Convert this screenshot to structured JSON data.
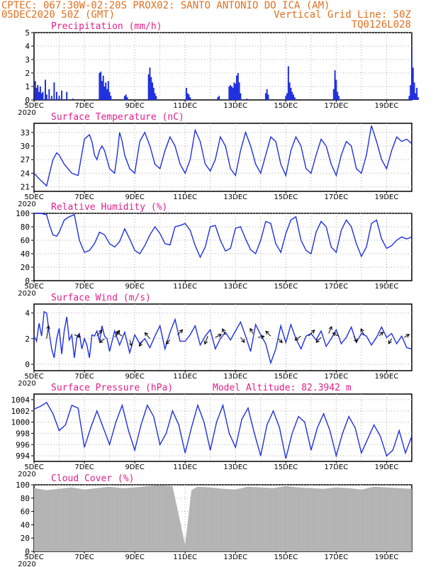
{
  "header": {
    "line1_left": "CPTEC:  067:30W-02:20S   PROX02: SANTO ANTONIO DO ICA (AM)",
    "line2_left": "05DEC2020 50Z (GMT)",
    "line2_right": "Vertical Grid Line: 50Z",
    "line3_right": "TQ0126L028"
  },
  "colors": {
    "series": "#2030e0",
    "title": "#e0208a",
    "header": "#e07020",
    "cloud": "#b0b0b0",
    "grid": "#aaaaaa"
  },
  "x_tick_labels": [
    "5DEC",
    "7DEC",
    "9DEC",
    "11DEC",
    "13DEC",
    "15DEC",
    "17DEC",
    "19DEC"
  ],
  "x_year_label": "2020",
  "chart_data": [
    {
      "type": "bar",
      "title": "Precipitation (mm/h)",
      "ylim": [
        0,
        5
      ],
      "yticks": [
        0,
        1,
        2,
        3,
        4,
        5
      ],
      "x_unit": "days since 05DEC2020 00Z",
      "bars": [
        [
          0.05,
          1.4
        ],
        [
          0.1,
          0.9
        ],
        [
          0.15,
          1.1
        ],
        [
          0.2,
          0.6
        ],
        [
          0.25,
          1.0
        ],
        [
          0.3,
          0.5
        ],
        [
          0.35,
          0.6
        ],
        [
          0.45,
          1.5
        ],
        [
          0.5,
          0.4
        ],
        [
          0.6,
          0.8
        ],
        [
          0.7,
          0.3
        ],
        [
          0.8,
          1.3
        ],
        [
          0.9,
          0.6
        ],
        [
          1.0,
          0.3
        ],
        [
          1.1,
          0.7
        ],
        [
          1.3,
          0.6
        ],
        [
          1.55,
          0.1
        ],
        [
          1.7,
          0.05
        ],
        [
          2.6,
          2.0
        ],
        [
          2.65,
          2.1
        ],
        [
          2.7,
          1.4
        ],
        [
          2.75,
          1.8
        ],
        [
          2.8,
          1.0
        ],
        [
          2.85,
          1.3
        ],
        [
          2.9,
          0.8
        ],
        [
          2.95,
          1.4
        ],
        [
          3.0,
          0.6
        ],
        [
          3.05,
          0.3
        ],
        [
          3.6,
          0.3
        ],
        [
          3.65,
          0.4
        ],
        [
          3.7,
          0.2
        ],
        [
          4.55,
          1.9
        ],
        [
          4.6,
          2.4
        ],
        [
          4.65,
          1.7
        ],
        [
          4.7,
          1.3
        ],
        [
          4.75,
          0.9
        ],
        [
          4.8,
          0.5
        ],
        [
          4.85,
          0.3
        ],
        [
          6.05,
          0.9
        ],
        [
          6.1,
          0.5
        ],
        [
          6.15,
          0.4
        ],
        [
          6.2,
          0.2
        ],
        [
          7.3,
          0.2
        ],
        [
          7.35,
          0.3
        ],
        [
          7.75,
          1.0
        ],
        [
          7.8,
          1.1
        ],
        [
          7.85,
          1.0
        ],
        [
          7.9,
          0.9
        ],
        [
          7.95,
          1.3
        ],
        [
          8.0,
          1.2
        ],
        [
          8.05,
          1.8
        ],
        [
          8.1,
          2.0
        ],
        [
          8.15,
          1.3
        ],
        [
          8.2,
          0.5
        ],
        [
          8.4,
          0.05
        ],
        [
          8.45,
          0.1
        ],
        [
          9.2,
          0.5
        ],
        [
          9.25,
          0.8
        ],
        [
          9.3,
          0.4
        ],
        [
          10.0,
          0.3
        ],
        [
          10.05,
          0.5
        ],
        [
          10.1,
          2.5
        ],
        [
          10.15,
          1.3
        ],
        [
          10.2,
          0.9
        ],
        [
          10.25,
          0.6
        ],
        [
          10.3,
          0.4
        ],
        [
          10.35,
          0.2
        ],
        [
          11.9,
          0.8
        ],
        [
          11.95,
          2.2
        ],
        [
          12.0,
          1.5
        ],
        [
          12.05,
          0.6
        ],
        [
          12.1,
          0.3
        ],
        [
          14.9,
          0.3
        ],
        [
          14.95,
          1.1
        ],
        [
          15.0,
          3.8
        ],
        [
          15.05,
          2.4
        ],
        [
          15.1,
          1.3
        ],
        [
          15.15,
          0.5
        ],
        [
          15.2,
          0.9
        ],
        [
          15.25,
          0.2
        ]
      ]
    },
    {
      "type": "line",
      "title": "Surface Temperature (nC)",
      "ylim": [
        20,
        35
      ],
      "yticks": [
        21,
        24,
        27,
        30,
        33
      ],
      "x": [
        0,
        0.25,
        0.5,
        0.62,
        0.75,
        0.9,
        1.0,
        1.2,
        1.5,
        1.75,
        2.0,
        2.2,
        2.3,
        2.4,
        2.5,
        2.6,
        2.7,
        2.8,
        2.9,
        3.0,
        3.2,
        3.3,
        3.4,
        3.5,
        3.6,
        3.8,
        4.0,
        4.2,
        4.4,
        4.6,
        4.8,
        5.0,
        5.2,
        5.4,
        5.6,
        5.8,
        6.0,
        6.2,
        6.4,
        6.6,
        6.8,
        7.0,
        7.2,
        7.4,
        7.6,
        7.8,
        8.0,
        8.2,
        8.4,
        8.6,
        8.8,
        9.0,
        9.2,
        9.4,
        9.6,
        9.8,
        10.0,
        10.2,
        10.4,
        10.6,
        10.8,
        11.0,
        11.2,
        11.4,
        11.6,
        11.8,
        12.0,
        12.2,
        12.4,
        12.6,
        12.8,
        13.0,
        13.2,
        13.4,
        13.6,
        13.8,
        14.0,
        14.2,
        14.4,
        14.6,
        14.8,
        15.0
      ],
      "values": [
        24,
        22.5,
        21.2,
        24,
        27,
        28.5,
        28,
        26,
        24,
        23.5,
        31.5,
        32.5,
        31,
        28,
        27,
        29,
        30,
        29,
        27,
        25,
        24,
        28,
        33,
        31,
        28,
        25,
        24,
        31,
        33,
        30,
        26,
        25,
        29,
        32,
        30,
        26,
        24,
        27,
        33.5,
        31,
        26,
        24.5,
        27,
        32,
        30,
        25,
        23.5,
        29,
        33,
        30,
        26,
        24,
        28,
        32,
        31,
        26,
        23.5,
        29,
        32,
        30,
        25,
        24,
        28,
        31.5,
        30,
        26,
        23.5,
        28,
        31,
        30,
        25,
        24,
        28,
        34.5,
        31,
        27,
        25,
        29,
        32,
        31,
        31.5,
        30.5
      ]
    },
    {
      "type": "line",
      "title": "Relative Humidity (%)",
      "ylim": [
        0,
        100
      ],
      "yticks": [
        0,
        20,
        40,
        60,
        80,
        100
      ],
      "x": [
        0,
        0.25,
        0.5,
        0.62,
        0.75,
        0.9,
        1.0,
        1.2,
        1.4,
        1.6,
        1.8,
        2.0,
        2.2,
        2.4,
        2.6,
        2.8,
        3.0,
        3.2,
        3.4,
        3.6,
        3.8,
        4.0,
        4.2,
        4.4,
        4.6,
        4.8,
        5.0,
        5.2,
        5.4,
        5.6,
        5.8,
        6.0,
        6.2,
        6.4,
        6.6,
        6.8,
        7.0,
        7.2,
        7.4,
        7.6,
        7.8,
        8.0,
        8.2,
        8.4,
        8.6,
        8.8,
        9.0,
        9.2,
        9.4,
        9.6,
        9.8,
        10.0,
        10.2,
        10.4,
        10.6,
        10.8,
        11.0,
        11.2,
        11.4,
        11.6,
        11.8,
        12.0,
        12.2,
        12.4,
        12.6,
        12.8,
        13.0,
        13.2,
        13.4,
        13.6,
        13.8,
        14.0,
        14.2,
        14.4,
        14.6,
        14.8,
        15.0
      ],
      "values": [
        100,
        100,
        98,
        82,
        68,
        66,
        72,
        90,
        95,
        98,
        60,
        42,
        45,
        55,
        72,
        68,
        55,
        50,
        58,
        77,
        62,
        45,
        40,
        52,
        68,
        80,
        70,
        55,
        53,
        80,
        82,
        85,
        75,
        52,
        35,
        50,
        80,
        82,
        60,
        44,
        48,
        78,
        80,
        62,
        46,
        40,
        60,
        88,
        85,
        55,
        42,
        70,
        90,
        95,
        60,
        45,
        40,
        72,
        88,
        80,
        50,
        42,
        75,
        90,
        80,
        55,
        36,
        50,
        85,
        90,
        62,
        48,
        52,
        60,
        65,
        62,
        65
      ]
    },
    {
      "type": "line",
      "title": "Surface Wind (m/s)",
      "ylim": [
        -0.5,
        4.7
      ],
      "yticks": [
        0,
        2,
        4
      ],
      "x": [
        0,
        0.1,
        0.2,
        0.3,
        0.4,
        0.5,
        0.6,
        0.7,
        0.8,
        0.9,
        1.0,
        1.1,
        1.2,
        1.3,
        1.4,
        1.5,
        1.6,
        1.7,
        1.8,
        1.9,
        2.0,
        2.1,
        2.2,
        2.3,
        2.4,
        2.5,
        2.6,
        2.7,
        2.8,
        2.9,
        3.0,
        3.2,
        3.4,
        3.6,
        3.8,
        4.0,
        4.2,
        4.4,
        4.6,
        4.8,
        5.0,
        5.2,
        5.4,
        5.6,
        5.8,
        6.0,
        6.2,
        6.4,
        6.6,
        6.8,
        7.0,
        7.2,
        7.4,
        7.6,
        7.8,
        8.0,
        8.2,
        8.4,
        8.6,
        8.8,
        9.0,
        9.2,
        9.4,
        9.6,
        9.8,
        10.0,
        10.2,
        10.4,
        10.6,
        10.8,
        11.0,
        11.2,
        11.4,
        11.6,
        11.8,
        12.0,
        12.2,
        12.4,
        12.6,
        12.8,
        13.0,
        13.2,
        13.4,
        13.6,
        13.8,
        14.0,
        14.2,
        14.4,
        14.6,
        14.8,
        15.0
      ],
      "values": [
        2.2,
        1.8,
        3.2,
        2.2,
        4.1,
        4.0,
        2.5,
        1.2,
        0.5,
        2.0,
        2.8,
        0.8,
        2.6,
        3.7,
        1.9,
        2.3,
        0.5,
        2.1,
        2.4,
        1.2,
        2.0,
        1.5,
        0.5,
        2.3,
        2.2,
        2.6,
        1.8,
        3.0,
        2.2,
        2.0,
        1.0,
        2.6,
        1.5,
        2.5,
        0.9,
        2.3,
        1.6,
        2.0,
        1.3,
        2.2,
        3.0,
        1.2,
        2.5,
        3.5,
        1.8,
        1.8,
        2.3,
        3.0,
        1.5,
        2.2,
        2.7,
        1.2,
        2.0,
        2.5,
        1.9,
        2.6,
        3.3,
        2.2,
        1.0,
        3.1,
        2.3,
        1.6,
        0.1,
        1.2,
        3.0,
        1.7,
        3.1,
        2.0,
        1.2,
        2.2,
        2.4,
        1.9,
        2.6,
        1.4,
        2.0,
        2.7,
        1.6,
        2.1,
        2.9,
        1.7,
        2.4,
        2.2,
        1.5,
        2.1,
        2.9,
        2.1,
        2.4,
        1.6,
        2.2,
        1.3,
        1.2
      ],
      "arrows": [
        [
          0.5,
          2.0,
          0.2,
          1.3
        ],
        [
          1.6,
          2.3,
          0.6,
          -0.2
        ],
        [
          2.5,
          2.2,
          0.5,
          0.6
        ],
        [
          2.8,
          2.0,
          -0.5,
          -0.4
        ],
        [
          3.2,
          2.1,
          0.5,
          0.7
        ],
        [
          3.5,
          2.2,
          -0.6,
          0.4
        ],
        [
          3.8,
          1.9,
          0.2,
          -0.6
        ],
        [
          4.3,
          1.8,
          -0.3,
          -0.5
        ],
        [
          4.6,
          2.0,
          -0.5,
          0.6
        ],
        [
          5.4,
          1.9,
          -0.4,
          -0.4
        ],
        [
          5.7,
          2.3,
          0.5,
          0.5
        ],
        [
          6.9,
          2.2,
          -0.3,
          -0.8
        ],
        [
          7.2,
          2.1,
          0.6,
          0.3
        ],
        [
          7.6,
          2.3,
          -0.3,
          0.6
        ],
        [
          8.2,
          2.1,
          0.4,
          -0.5
        ],
        [
          8.7,
          2.4,
          -0.3,
          0.5
        ],
        [
          8.9,
          2.1,
          0.6,
          0.1
        ],
        [
          9.4,
          2.2,
          -0.5,
          0.5
        ],
        [
          9.7,
          2.0,
          0.4,
          -0.4
        ],
        [
          10.6,
          2.2,
          -0.6,
          -0.4
        ],
        [
          10.9,
          2.2,
          0.6,
          0.6
        ],
        [
          11.4,
          2.1,
          -0.5,
          -0.5
        ],
        [
          11.7,
          2.4,
          0.3,
          0.7
        ],
        [
          12.1,
          2.2,
          -0.6,
          0.3
        ],
        [
          12.7,
          2.2,
          0.3,
          -0.6
        ],
        [
          13.1,
          2.3,
          -0.3,
          0.6
        ],
        [
          13.7,
          2.2,
          0.4,
          0.4
        ],
        [
          14.2,
          2.0,
          -0.3,
          -0.5
        ],
        [
          14.7,
          2.1,
          0.5,
          0.3
        ]
      ]
    },
    {
      "type": "line",
      "title": "Surface Pressure (hPa)",
      "annotation": "Model Altitude: 82.3942 m",
      "ylim": [
        993,
        1005
      ],
      "yticks": [
        994,
        996,
        998,
        1000,
        1002,
        1004
      ],
      "x": [
        0,
        0.25,
        0.5,
        0.75,
        1.0,
        1.25,
        1.5,
        1.75,
        2.0,
        2.25,
        2.5,
        2.75,
        3.0,
        3.25,
        3.5,
        3.75,
        4.0,
        4.25,
        4.5,
        4.75,
        5.0,
        5.25,
        5.5,
        5.75,
        6.0,
        6.25,
        6.5,
        6.75,
        7.0,
        7.25,
        7.5,
        7.75,
        8.0,
        8.25,
        8.5,
        8.75,
        9.0,
        9.25,
        9.5,
        9.75,
        10.0,
        10.25,
        10.5,
        10.75,
        11.0,
        11.25,
        11.5,
        11.75,
        12.0,
        12.25,
        12.5,
        12.75,
        13.0,
        13.25,
        13.5,
        13.75,
        14.0,
        14.25,
        14.5,
        14.75,
        15.0
      ],
      "values": [
        1002.3,
        1002.8,
        1003.5,
        1001.5,
        998.5,
        999.5,
        1003.0,
        1002.5,
        995.5,
        999.0,
        1002.0,
        999.0,
        996.0,
        1000.0,
        1003.0,
        998.5,
        995.0,
        999.5,
        1003.0,
        1001.0,
        996.0,
        998.0,
        1002.0,
        999.5,
        994.5,
        999.0,
        1003.0,
        1000.0,
        995.0,
        1000.0,
        1003.0,
        998.0,
        995.5,
        1000.5,
        1002.5,
        998.0,
        994.0,
        999.5,
        1002.0,
        999.0,
        993.5,
        998.0,
        1001.0,
        1000.0,
        995.0,
        999.0,
        1001.5,
        998.5,
        994.0,
        998.0,
        1001.0,
        999.0,
        994.5,
        997.0,
        999.5,
        997.5,
        994.0,
        995.0,
        998.5,
        994.5,
        997.5
      ]
    },
    {
      "type": "area",
      "title": "Cloud Cover (%)",
      "ylim": [
        0,
        100
      ],
      "yticks": [
        0,
        20,
        40,
        60,
        80,
        100
      ],
      "x": [
        0,
        0.5,
        1.0,
        1.5,
        2.0,
        2.5,
        3.0,
        3.5,
        4.0,
        4.5,
        5.0,
        5.5,
        6.0,
        6.25,
        6.5,
        7.0,
        7.5,
        8.0,
        8.5,
        9.0,
        9.5,
        10.0,
        10.5,
        11.0,
        11.5,
        12.0,
        12.5,
        13.0,
        13.5,
        14.0,
        14.5,
        15.0
      ],
      "values": [
        95,
        92,
        94,
        96,
        93,
        95,
        97,
        95,
        96,
        98,
        99,
        98,
        10,
        92,
        97,
        96,
        94,
        93,
        97,
        96,
        95,
        98,
        96,
        95,
        94,
        96,
        95,
        93,
        97,
        96,
        95,
        94
      ]
    }
  ]
}
